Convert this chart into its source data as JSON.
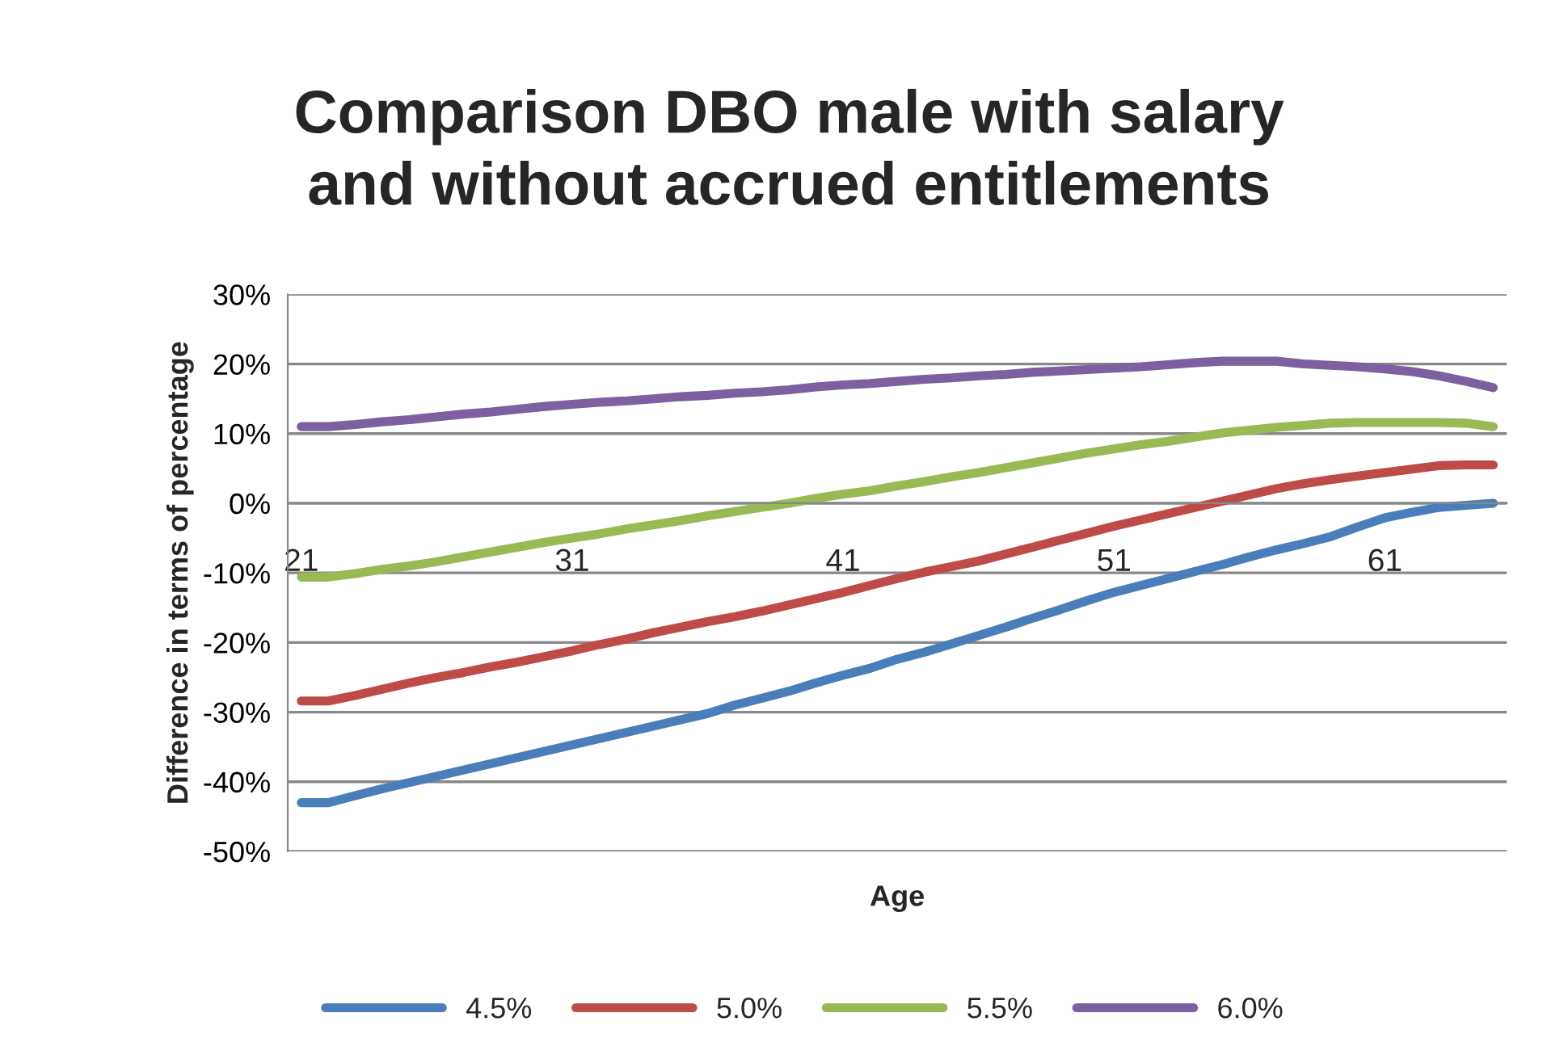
{
  "chart_data": {
    "type": "line",
    "title": "Comparison DBO male with salary\nand without accrued entitlements",
    "xlabel": "Age",
    "ylabel": "Difference in terms of percentage",
    "categories": [
      "21",
      null,
      null,
      null,
      null,
      null,
      null,
      null,
      null,
      null,
      "31",
      null,
      null,
      null,
      null,
      null,
      null,
      null,
      null,
      null,
      "41",
      null,
      null,
      null,
      null,
      null,
      null,
      null,
      null,
      null,
      "51",
      null,
      null,
      null,
      null,
      null,
      null,
      null,
      null,
      null,
      "61",
      null,
      null,
      null,
      null
    ],
    "series": [
      {
        "name": "4.5%",
        "color": "#4a7ebb",
        "values": [
          -43,
          -43,
          -42,
          -41,
          -40.1,
          -39.2,
          -38.3,
          -37.4,
          -36.5,
          -35.6,
          -34.7,
          -33.8,
          -32.9,
          -32,
          -31.1,
          -30.2,
          -29,
          -28,
          -27,
          -25.8,
          -24.7,
          -23.7,
          -22.4,
          -21.4,
          -20.2,
          -19,
          -17.8,
          -16.5,
          -15.3,
          -14,
          -12.8,
          -11.8,
          -10.8,
          -9.8,
          -8.8,
          -7.7,
          -6.7,
          -5.8,
          -4.8,
          -3.4,
          -2.1,
          -1.3,
          -0.6,
          -0.3,
          0
        ]
      },
      {
        "name": "5.0%",
        "color": "#be4b48",
        "values": [
          -28.4,
          -28.4,
          -27.6,
          -26.7,
          -25.8,
          -25,
          -24.3,
          -23.5,
          -22.8,
          -22,
          -21.2,
          -20.3,
          -19.5,
          -18.6,
          -17.8,
          -17,
          -16.3,
          -15.5,
          -14.6,
          -13.7,
          -12.8,
          -11.8,
          -10.8,
          -9.9,
          -9.1,
          -8.3,
          -7.3,
          -6.3,
          -5.3,
          -4.3,
          -3.3,
          -2.4,
          -1.5,
          -0.6,
          0.3,
          1.2,
          2.1,
          2.8,
          3.4,
          3.9,
          4.4,
          4.9,
          5.4,
          5.5,
          5.5
        ]
      },
      {
        "name": "5.5%",
        "color": "#98b954",
        "values": [
          -10.6,
          -10.6,
          -10.1,
          -9.5,
          -9,
          -8.4,
          -7.7,
          -7,
          -6.3,
          -5.6,
          -5,
          -4.4,
          -3.7,
          -3.1,
          -2.5,
          -1.8,
          -1.2,
          -0.6,
          0,
          0.7,
          1.3,
          1.8,
          2.5,
          3.1,
          3.8,
          4.4,
          5.1,
          5.8,
          6.5,
          7.2,
          7.8,
          8.4,
          8.9,
          9.5,
          10.1,
          10.5,
          10.9,
          11.2,
          11.5,
          11.6,
          11.6,
          11.6,
          11.6,
          11.5,
          11
        ]
      },
      {
        "name": "6.0%",
        "color": "#7d60a0",
        "values": [
          11,
          11,
          11.3,
          11.7,
          12,
          12.4,
          12.8,
          13.1,
          13.5,
          13.9,
          14.2,
          14.5,
          14.7,
          15,
          15.3,
          15.5,
          15.8,
          16,
          16.3,
          16.7,
          17,
          17.2,
          17.5,
          17.8,
          18,
          18.3,
          18.5,
          18.8,
          19,
          19.2,
          19.4,
          19.6,
          19.9,
          20.2,
          20.4,
          20.4,
          20.4,
          20,
          19.8,
          19.6,
          19.3,
          18.9,
          18.3,
          17.5,
          16.6
        ]
      }
    ],
    "ylim": [
      -50,
      30
    ],
    "yticks": [
      {
        "value": -50,
        "label": "-50%"
      },
      {
        "value": -40,
        "label": "-40%"
      },
      {
        "value": -30,
        "label": "-30%"
      },
      {
        "value": -20,
        "label": "-20%"
      },
      {
        "value": -10,
        "label": "-10%"
      },
      {
        "value": 0,
        "label": "0%"
      },
      {
        "value": 10,
        "label": "10%"
      },
      {
        "value": 20,
        "label": "20%"
      },
      {
        "value": 30,
        "label": "30%"
      }
    ],
    "grid": "y",
    "legend": "bottom",
    "marker": "none",
    "line_style": "solid"
  }
}
